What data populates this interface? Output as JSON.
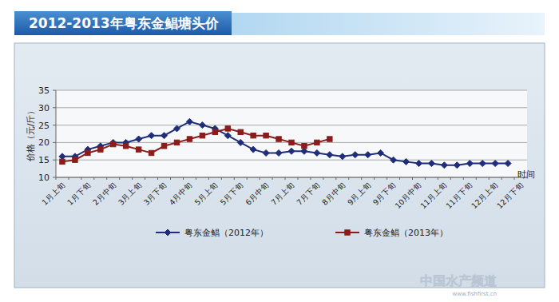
{
  "chart_data": {
    "type": "line",
    "title": "2012-2013年粤东金鲳塘头价",
    "x_label": "时间",
    "y_label": "价格（元/斤）",
    "annotations": [
      "中国水产频道",
      "www.fishfirst.cn"
    ],
    "categories": [
      "1月上旬",
      null,
      "1月下旬",
      null,
      "2月中旬",
      null,
      "3月上旬",
      null,
      "3月下旬",
      null,
      "4月中旬",
      null,
      "5月上旬",
      null,
      "5月下旬",
      null,
      "6月中旬",
      null,
      "7月上旬",
      null,
      "7月下旬",
      null,
      "8月中旬",
      null,
      "9月上旬",
      null,
      "9月下旬",
      null,
      "10月中旬",
      null,
      "11月上旬",
      null,
      "11月下旬",
      null,
      "12月上旬",
      null,
      "12月下旬"
    ],
    "series": [
      {
        "name": "粤东金鲳（2012年）",
        "color": "#1f2d7a",
        "marker": "diamond",
        "line_style": "solid",
        "values": [
          16,
          16,
          18,
          19,
          20,
          20,
          21,
          22,
          22,
          24,
          26,
          25,
          24,
          22,
          20,
          18,
          17,
          17,
          17.5,
          17.5,
          17,
          16.5,
          16,
          16.5,
          16.5,
          17,
          15,
          14.5,
          14,
          14,
          13.5,
          13.5,
          14,
          14,
          14,
          14,
          null
        ]
      },
      {
        "name": "粤东金鲳（2013年）",
        "color": "#8b1c1c",
        "marker": "square",
        "line_style": "solid",
        "values": [
          14.5,
          15,
          17,
          18,
          19.5,
          19,
          18,
          17,
          19,
          20,
          21,
          22,
          23,
          24,
          23,
          22,
          22,
          21,
          20,
          19,
          20,
          21,
          null,
          null,
          null,
          null,
          null,
          null,
          null,
          null,
          null,
          null,
          null,
          null,
          null,
          null,
          null
        ]
      }
    ],
    "ylim": [
      10,
      35
    ],
    "yticks": [
      10,
      15,
      20,
      25,
      30,
      35
    ],
    "grid": true,
    "legend": "bottom"
  }
}
